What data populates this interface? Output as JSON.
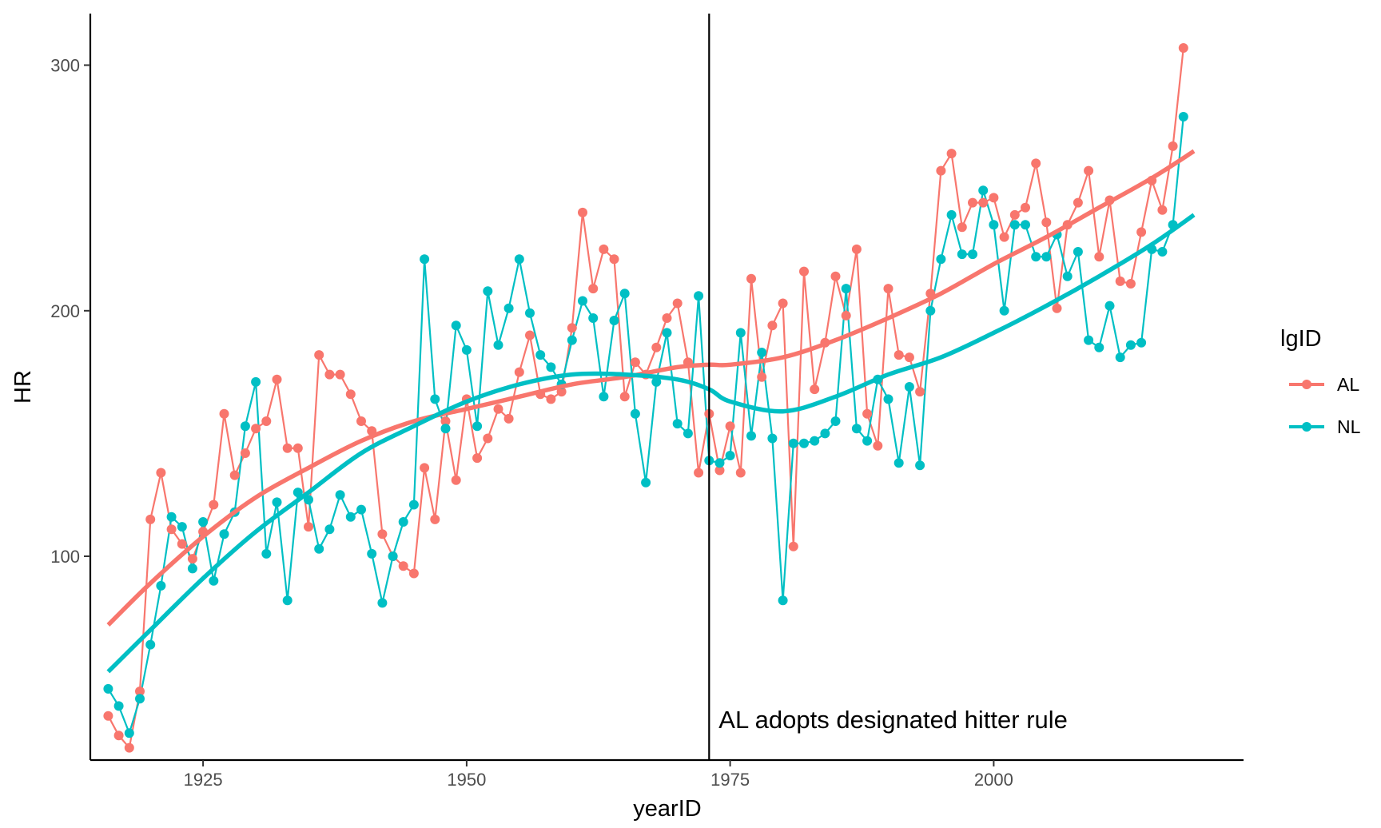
{
  "chart_data": {
    "type": "line",
    "xlabel": "yearID",
    "ylabel": "HR",
    "xlim": [
      1914.3,
      2023.7
    ],
    "ylim": [
      17,
      321
    ],
    "x_ticks": [
      1925,
      1950,
      1975,
      2000
    ],
    "y_ticks": [
      100,
      200,
      300
    ],
    "x_tick_labels": [
      "1925",
      "1950",
      "1975",
      "2000"
    ],
    "y_tick_labels": [
      "100",
      "200",
      "300"
    ],
    "grid": false,
    "legend": {
      "title": "lgID",
      "placement": "right"
    },
    "annotation": {
      "text": "AL adopts designated hitter rule",
      "x": 1973
    },
    "vline_x": 1973,
    "series": [
      {
        "name": "AL",
        "color": "#F8766D",
        "x": [
          1916,
          1917,
          1918,
          1919,
          1920,
          1921,
          1922,
          1923,
          1924,
          1925,
          1926,
          1927,
          1928,
          1929,
          1930,
          1931,
          1932,
          1933,
          1934,
          1935,
          1936,
          1937,
          1938,
          1939,
          1940,
          1941,
          1942,
          1943,
          1944,
          1945,
          1946,
          1947,
          1948,
          1949,
          1950,
          1951,
          1952,
          1953,
          1954,
          1955,
          1956,
          1957,
          1958,
          1959,
          1960,
          1961,
          1962,
          1963,
          1964,
          1965,
          1966,
          1967,
          1968,
          1969,
          1970,
          1971,
          1972,
          1973,
          1974,
          1975,
          1976,
          1977,
          1978,
          1979,
          1980,
          1981,
          1982,
          1983,
          1984,
          1985,
          1986,
          1987,
          1988,
          1989,
          1990,
          1991,
          1992,
          1993,
          1994,
          1995,
          1996,
          1997,
          1998,
          1999,
          2000,
          2001,
          2002,
          2003,
          2004,
          2005,
          2006,
          2007,
          2008,
          2009,
          2010,
          2011,
          2012,
          2013,
          2014,
          2015,
          2016,
          2017,
          2018,
          2019
        ],
        "y": [
          35,
          27,
          22,
          45,
          115,
          134,
          111,
          105,
          99,
          110,
          121,
          158,
          133,
          142,
          152,
          155,
          172,
          144,
          144,
          112,
          182,
          174,
          174,
          166,
          155,
          151,
          109,
          100,
          96,
          93,
          136,
          115,
          155,
          131,
          164,
          140,
          148,
          160,
          156,
          175,
          190,
          166,
          164,
          167,
          193,
          240,
          209,
          225,
          221,
          165,
          179,
          174,
          185,
          197,
          203,
          179,
          134,
          158,
          135,
          153,
          134,
          213,
          173,
          194,
          203,
          104,
          216,
          168,
          187,
          214,
          198,
          225,
          158,
          145,
          209,
          182,
          181,
          167,
          207,
          257,
          264,
          234,
          244,
          244,
          246,
          230,
          239,
          242,
          260,
          236,
          201,
          235,
          244,
          257,
          222,
          245,
          212,
          211,
          232,
          253,
          241,
          267,
          307,
          null
        ]
      },
      {
        "name": "NL",
        "color": "#00BFC4",
        "x": [
          1916,
          1917,
          1918,
          1919,
          1920,
          1921,
          1922,
          1923,
          1924,
          1925,
          1926,
          1927,
          1928,
          1929,
          1930,
          1931,
          1932,
          1933,
          1934,
          1935,
          1936,
          1937,
          1938,
          1939,
          1940,
          1941,
          1942,
          1943,
          1944,
          1945,
          1946,
          1947,
          1948,
          1949,
          1950,
          1951,
          1952,
          1953,
          1954,
          1955,
          1956,
          1957,
          1958,
          1959,
          1960,
          1961,
          1962,
          1963,
          1964,
          1965,
          1966,
          1967,
          1968,
          1969,
          1970,
          1971,
          1972,
          1973,
          1974,
          1975,
          1976,
          1977,
          1978,
          1979,
          1980,
          1981,
          1982,
          1983,
          1984,
          1985,
          1986,
          1987,
          1988,
          1989,
          1990,
          1991,
          1992,
          1993,
          1994,
          1995,
          1996,
          1997,
          1998,
          1999,
          2000,
          2001,
          2002,
          2003,
          2004,
          2005,
          2006,
          2007,
          2008,
          2009,
          2010,
          2011,
          2012,
          2013,
          2014,
          2015,
          2016,
          2017,
          2018,
          2019
        ],
        "y": [
          46,
          39,
          28,
          42,
          64,
          88,
          116,
          112,
          95,
          114,
          90,
          109,
          118,
          153,
          171,
          101,
          122,
          82,
          126,
          123,
          103,
          111,
          125,
          116,
          119,
          101,
          81,
          100,
          114,
          121,
          221,
          164,
          152,
          194,
          184,
          153,
          208,
          186,
          201,
          221,
          199,
          182,
          177,
          170,
          188,
          204,
          197,
          165,
          196,
          207,
          158,
          130,
          171,
          191,
          154,
          150,
          206,
          139,
          138,
          141,
          191,
          149,
          183,
          148,
          82,
          146,
          146,
          147,
          150,
          155,
          209,
          152,
          147,
          172,
          164,
          138,
          169,
          137,
          200,
          221,
          239,
          223,
          223,
          249,
          235,
          200,
          235,
          235,
          222,
          222,
          231,
          214,
          224,
          188,
          185,
          202,
          181,
          186,
          187,
          225,
          224,
          235,
          279,
          null
        ]
      }
    ],
    "trend_series": [
      {
        "name": "AL",
        "color": "#F8766D",
        "x": [
          1916,
          1920,
          1925,
          1930,
          1935,
          1940,
          1945,
          1950,
          1955,
          1960,
          1965,
          1970,
          1973,
          1975,
          1980,
          1985,
          1990,
          1995,
          2000,
          2005,
          2010,
          2015,
          2019
        ],
        "y": [
          72,
          89,
          108,
          124,
          136,
          147,
          155,
          160,
          165,
          170,
          173,
          177,
          178,
          178,
          181,
          188,
          197,
          207,
          219,
          230,
          242,
          254,
          265
        ]
      },
      {
        "name": "NL",
        "color": "#00BFC4",
        "x": [
          1916,
          1920,
          1925,
          1930,
          1935,
          1940,
          1945,
          1950,
          1955,
          1960,
          1965,
          1970,
          1973,
          1975,
          1980,
          1985,
          1990,
          1995,
          2000,
          2005,
          2010,
          2015,
          2019
        ],
        "y": [
          53,
          70,
          91,
          110,
          126,
          142,
          153,
          163,
          170,
          174,
          174,
          172,
          168,
          163,
          159,
          165,
          174,
          181,
          191,
          202,
          214,
          227,
          239
        ]
      }
    ]
  }
}
